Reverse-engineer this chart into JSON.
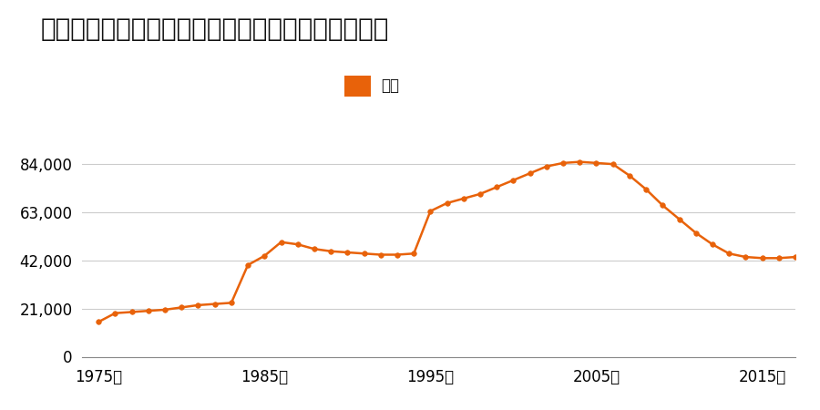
{
  "title": "山形県山形市大字江俣字裏田１４８１番の地価推移",
  "legend_label": "価格",
  "line_color": "#E8620A",
  "marker_color": "#E8620A",
  "background_color": "#ffffff",
  "grid_color": "#cccccc",
  "xlabel_suffix": "年",
  "xticks": [
    1975,
    1985,
    1995,
    2005,
    2015
  ],
  "yticks": [
    0,
    21000,
    42000,
    63000,
    84000
  ],
  "ylim": [
    0,
    93000
  ],
  "xlim": [
    1974,
    2017
  ],
  "years": [
    1975,
    1976,
    1977,
    1978,
    1979,
    1980,
    1981,
    1982,
    1983,
    1984,
    1985,
    1986,
    1987,
    1988,
    1989,
    1990,
    1991,
    1992,
    1993,
    1994,
    1995,
    1996,
    1997,
    1998,
    1999,
    2000,
    2001,
    2002,
    2003,
    2004,
    2005,
    2006,
    2007,
    2008,
    2009,
    2010,
    2011,
    2012,
    2013,
    2014,
    2015,
    2016,
    2017
  ],
  "values": [
    15200,
    19000,
    19500,
    20000,
    20500,
    21500,
    22500,
    23000,
    23500,
    40000,
    44000,
    50000,
    49000,
    47000,
    46000,
    45500,
    45000,
    44500,
    44500,
    45000,
    63500,
    67000,
    69000,
    71000,
    74000,
    77000,
    80000,
    83000,
    84500,
    85000,
    84500,
    84000,
    79000,
    73000,
    66000,
    60000,
    54000,
    49000,
    45000,
    43500,
    43000,
    43000,
    43500
  ],
  "title_fontsize": 20,
  "tick_fontsize": 12,
  "legend_fontsize": 12
}
